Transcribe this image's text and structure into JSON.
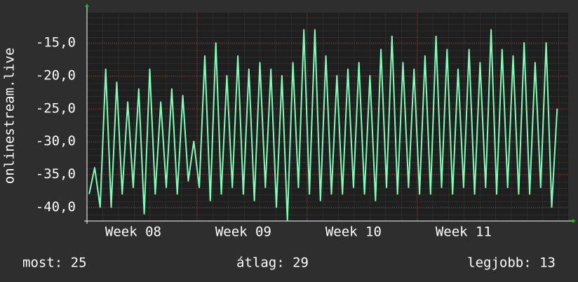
{
  "chart_data": {
    "type": "line",
    "ylabel": "onlinestream.live",
    "x": [
      7.6,
      7.65,
      7.7,
      7.75,
      7.8,
      7.85,
      7.9,
      7.95,
      8.0,
      8.05,
      8.1,
      8.15,
      8.2,
      8.25,
      8.3,
      8.35,
      8.4,
      8.45,
      8.5,
      8.55,
      8.6,
      8.65,
      8.7,
      8.75,
      8.8,
      8.85,
      8.9,
      8.95,
      9.0,
      9.05,
      9.1,
      9.15,
      9.2,
      9.25,
      9.3,
      9.35,
      9.4,
      9.45,
      9.5,
      9.55,
      9.6,
      9.65,
      9.7,
      9.75,
      9.8,
      9.85,
      9.9,
      9.95,
      10.0,
      10.05,
      10.1,
      10.15,
      10.2,
      10.25,
      10.3,
      10.35,
      10.4,
      10.45,
      10.5,
      10.55,
      10.6,
      10.65,
      10.7,
      10.75,
      10.8,
      10.85,
      10.9,
      10.95,
      11.0,
      11.05,
      11.1,
      11.15,
      11.2,
      11.25,
      11.3,
      11.35,
      11.4,
      11.45,
      11.5,
      11.55,
      11.6,
      11.65,
      11.7,
      11.75,
      11.8,
      11.85
    ],
    "values": [
      -38,
      -34,
      -40,
      -19,
      -40,
      -21,
      -38,
      -24,
      -37,
      -22,
      -41,
      -19,
      -38,
      -24,
      -37,
      -22,
      -38,
      -23,
      -36,
      -30,
      -37,
      -17,
      -39,
      -15,
      -38,
      -20,
      -37,
      -17,
      -38,
      -19,
      -39,
      -18,
      -37,
      -19,
      -40,
      -20,
      -42,
      -18,
      -37,
      -13,
      -38,
      -13,
      -39,
      -17,
      -38,
      -20,
      -38,
      -19,
      -37,
      -18,
      -38,
      -20,
      -39,
      -16,
      -37,
      -14,
      -38,
      -18,
      -37,
      -19,
      -38,
      -17,
      -38,
      -14,
      -37,
      -16,
      -38,
      -19,
      -37,
      -16,
      -38,
      -18,
      -37,
      -13,
      -38,
      -16,
      -37,
      -17,
      -38,
      -15,
      -38,
      -18,
      -37,
      -15,
      -40,
      -25
    ],
    "color": "#7dffb8",
    "xlim": [
      7.58,
      11.95
    ],
    "xticks": [
      {
        "value": 8,
        "label": "Week 08"
      },
      {
        "value": 9,
        "label": "Week 09"
      },
      {
        "value": 10,
        "label": "Week 10"
      },
      {
        "value": 11,
        "label": "Week 11"
      }
    ],
    "ylim": [
      -42.1,
      -10.4
    ],
    "yticks": [
      {
        "value": -15,
        "label": "-15,0"
      },
      {
        "value": -20,
        "label": "-20,0"
      },
      {
        "value": -25,
        "label": "-25,0"
      },
      {
        "value": -30,
        "label": "-30,0"
      },
      {
        "value": -35,
        "label": "-35,0"
      },
      {
        "value": -40,
        "label": "-40,0"
      }
    ],
    "grid": true
  },
  "footer": {
    "current": "most: 25",
    "average": "átlag: 29",
    "best": "legjobb: 13"
  }
}
